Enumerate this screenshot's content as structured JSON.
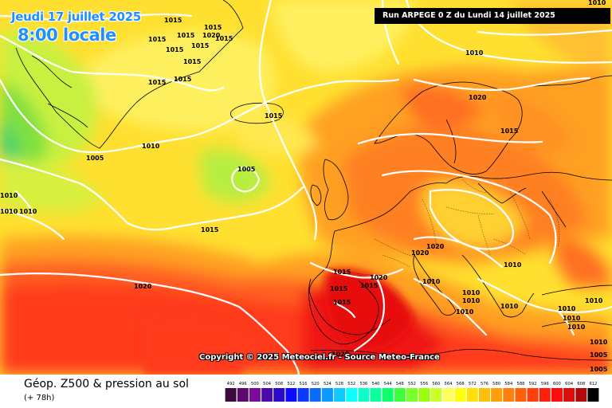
{
  "header": {
    "date_title": "Jeudi 17 juillet 2025",
    "time_title": "8:00 locale",
    "run_info": "Run ARPEGE 0 Z du Lundi 14 juillet 2025",
    "copyright": "Copyright © 2025 Meteociel.fr - Source Meteo-France"
  },
  "legend": {
    "title": "Géop. Z500 & pression au sol",
    "subtitle": "(+ 78h)",
    "scale_values": [
      "492",
      "496",
      "500",
      "504",
      "508",
      "512",
      "516",
      "520",
      "524",
      "528",
      "532",
      "536",
      "540",
      "544",
      "548",
      "552",
      "556",
      "560",
      "564",
      "568",
      "572",
      "576",
      "580",
      "584",
      "588",
      "592",
      "596",
      "600",
      "604",
      "608",
      "612"
    ],
    "scale_colors": [
      "#3b0b3b",
      "#5b0b6b",
      "#7b0b9b",
      "#4b0bab",
      "#2b0bcb",
      "#0b0bff",
      "#0b3bff",
      "#0b6bff",
      "#0b9bff",
      "#0bcbff",
      "#0bffff",
      "#0bffcb",
      "#0bff9b",
      "#0bff6b",
      "#3bff3b",
      "#7bff2b",
      "#9bff0b",
      "#cbff2b",
      "#ffff5b",
      "#ffff0b",
      "#ffe00b",
      "#ffc00b",
      "#ffa00b",
      "#ff800b",
      "#ff600b",
      "#ff400b",
      "#ff200b",
      "#ff0b0b",
      "#e00b0b",
      "#b00b0b",
      "#000000"
    ]
  },
  "pressure_labels": [
    "1015",
    "1015",
    "1020",
    "1015",
    "1015",
    "1015",
    "1015",
    "1015",
    "1015",
    "1015",
    "1015",
    "1010",
    "1005",
    "1010",
    "1005",
    "1010",
    "1010",
    "1010",
    "1015",
    "1020",
    "1010",
    "1020",
    "1015",
    "1020",
    "1010",
    "1020",
    "1010",
    "1015",
    "1015",
    "1020",
    "1015",
    "1015",
    "1015",
    "1010",
    "1010",
    "1010",
    "1010",
    "1010",
    "1010",
    "1010",
    "1010",
    "1010",
    "1020",
    "1005",
    "1005"
  ]
}
